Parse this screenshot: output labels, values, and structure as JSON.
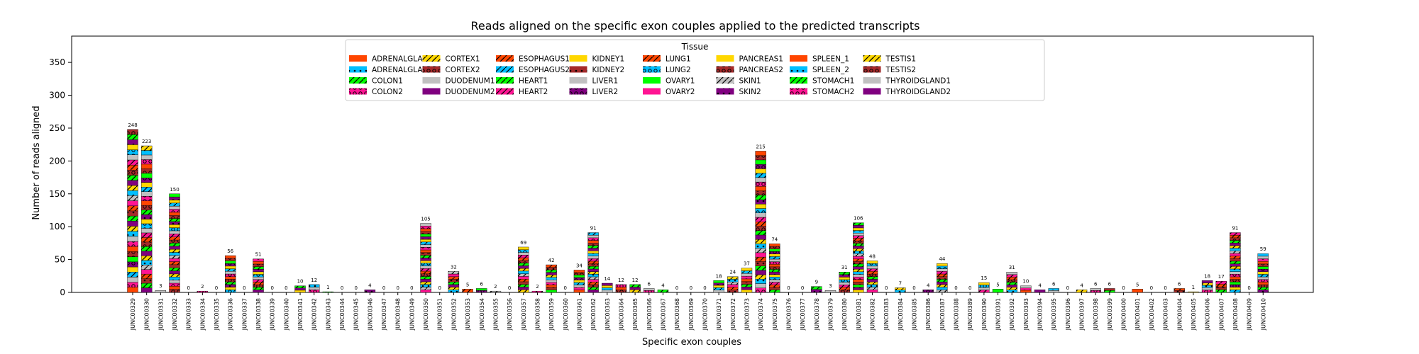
{
  "chart_data": {
    "type": "bar",
    "stacked": true,
    "title": "Reads aligned on the specific exon couples applied to the predicted transcripts",
    "xlabel": "Specific exon couples",
    "ylabel": "Number of reads aligned",
    "ylim": [
      0,
      390
    ],
    "yticks": [
      0,
      50,
      100,
      150,
      200,
      250,
      300,
      350
    ],
    "grid": false,
    "legend": {
      "title": "Tissue",
      "placement": "top-center",
      "entries": [
        "ADRENALGLAND1",
        "ADRENALGLAND2",
        "COLON1",
        "COLON2",
        "CORTEX1",
        "CORTEX2",
        "DUODENUM1",
        "DUODENUM2",
        "ESOPHAGUS1",
        "ESOPHAGUS2",
        "HEART1",
        "HEART2",
        "KIDNEY1",
        "KIDNEY2",
        "LIVER1",
        "LIVER2",
        "LUNG1",
        "LUNG2",
        "OVARY1",
        "OVARY2",
        "PANCREAS1",
        "PANCREAS2",
        "SKIN1",
        "SKIN2",
        "SPLEEN_1",
        "SPLEEN_2",
        "STOMACH1",
        "STOMACH2",
        "TESTIS1",
        "TESTIS2",
        "THYROIDGLAND1",
        "THYROIDGLAND2"
      ]
    },
    "series_styles": [
      {
        "color": "#FF4500",
        "hatch": "none"
      },
      {
        "color": "#00BFFF",
        "hatch": "dots"
      },
      {
        "color": "#00FF00",
        "hatch": "slash"
      },
      {
        "color": "#FF1493",
        "hatch": "circles"
      },
      {
        "color": "#FFD700",
        "hatch": "slash"
      },
      {
        "color": "#A52A2A",
        "hatch": "circles"
      },
      {
        "color": "#C0C0C0",
        "hatch": "none"
      },
      {
        "color": "#800080",
        "hatch": "none"
      },
      {
        "color": "#FF4500",
        "hatch": "slash"
      },
      {
        "color": "#00BFFF",
        "hatch": "slash"
      },
      {
        "color": "#00FF00",
        "hatch": "slash"
      },
      {
        "color": "#FF1493",
        "hatch": "slash"
      },
      {
        "color": "#FFD700",
        "hatch": "none"
      },
      {
        "color": "#A52A2A",
        "hatch": "dots"
      },
      {
        "color": "#C0C0C0",
        "hatch": "none"
      },
      {
        "color": "#800080",
        "hatch": "circles"
      },
      {
        "color": "#FF4500",
        "hatch": "slash"
      },
      {
        "color": "#00BFFF",
        "hatch": "circles"
      },
      {
        "color": "#00FF00",
        "hatch": "none"
      },
      {
        "color": "#FF1493",
        "hatch": "none"
      },
      {
        "color": "#FFD700",
        "hatch": "none"
      },
      {
        "color": "#A52A2A",
        "hatch": "circles"
      },
      {
        "color": "#C0C0C0",
        "hatch": "slash"
      },
      {
        "color": "#800080",
        "hatch": "dots"
      },
      {
        "color": "#FF4500",
        "hatch": "none"
      },
      {
        "color": "#00BFFF",
        "hatch": "dots"
      },
      {
        "color": "#00FF00",
        "hatch": "slash"
      },
      {
        "color": "#FF1493",
        "hatch": "circles"
      },
      {
        "color": "#FFD700",
        "hatch": "slash"
      },
      {
        "color": "#A52A2A",
        "hatch": "circles"
      },
      {
        "color": "#C0C0C0",
        "hatch": "none"
      },
      {
        "color": "#800080",
        "hatch": "none"
      }
    ],
    "categories": [
      "JUNC00329",
      "JUNC00330",
      "JUNC00331",
      "JUNC00332",
      "JUNC00333",
      "JUNC00334",
      "JUNC00335",
      "JUNC00336",
      "JUNC00337",
      "JUNC00338",
      "JUNC00339",
      "JUNC00340",
      "JUNC00341",
      "JUNC00342",
      "JUNC00343",
      "JUNC00344",
      "JUNC00345",
      "JUNC00346",
      "JUNC00347",
      "JUNC00348",
      "JUNC00349",
      "JUNC00350",
      "JUNC00351",
      "JUNC00352",
      "JUNC00353",
      "JUNC00354",
      "JUNC00355",
      "JUNC00356",
      "JUNC00357",
      "JUNC00358",
      "JUNC00359",
      "JUNC00360",
      "JUNC00361",
      "JUNC00362",
      "JUNC00363",
      "JUNC00364",
      "JUNC00365",
      "JUNC00366",
      "JUNC00367",
      "JUNC00368",
      "JUNC00369",
      "JUNC00370",
      "JUNC00371",
      "JUNC00372",
      "JUNC00373",
      "JUNC00374",
      "JUNC00375",
      "JUNC00376",
      "JUNC00377",
      "JUNC00378",
      "JUNC00379",
      "JUNC00380",
      "JUNC00381",
      "JUNC00382",
      "JUNC00383",
      "JUNC00384",
      "JUNC00385",
      "JUNC00386",
      "JUNC00387",
      "JUNC00388",
      "JUNC00389",
      "JUNC00390",
      "JUNC00391",
      "JUNC00392",
      "JUNC00393",
      "JUNC00394",
      "JUNC00395",
      "JUNC00396",
      "JUNC00397",
      "JUNC00398",
      "JUNC00399",
      "JUNC00400",
      "JUNC00401",
      "JUNC00402",
      "JUNC00403",
      "JUNC00404",
      "JUNC00405",
      "JUNC00406",
      "JUNC00407",
      "JUNC00408",
      "JUNC00409",
      "JUNC00410"
    ],
    "totals": [
      248,
      223,
      3,
      150,
      0,
      2,
      0,
      56,
      0,
      51,
      0,
      0,
      10,
      12,
      1,
      0,
      0,
      4,
      0,
      0,
      0,
      105,
      0,
      32,
      5,
      6,
      2,
      0,
      69,
      2,
      42,
      0,
      34,
      91,
      14,
      12,
      12,
      6,
      4,
      0,
      0,
      0,
      18,
      24,
      37,
      215,
      74,
      0,
      0,
      9,
      3,
      31,
      106,
      48,
      0,
      7,
      0,
      4,
      44,
      0,
      0,
      15,
      5,
      31,
      10,
      4,
      6,
      0,
      4,
      6,
      6,
      0,
      5,
      0,
      0,
      6,
      1,
      18,
      17,
      91,
      0,
      59
    ]
  }
}
